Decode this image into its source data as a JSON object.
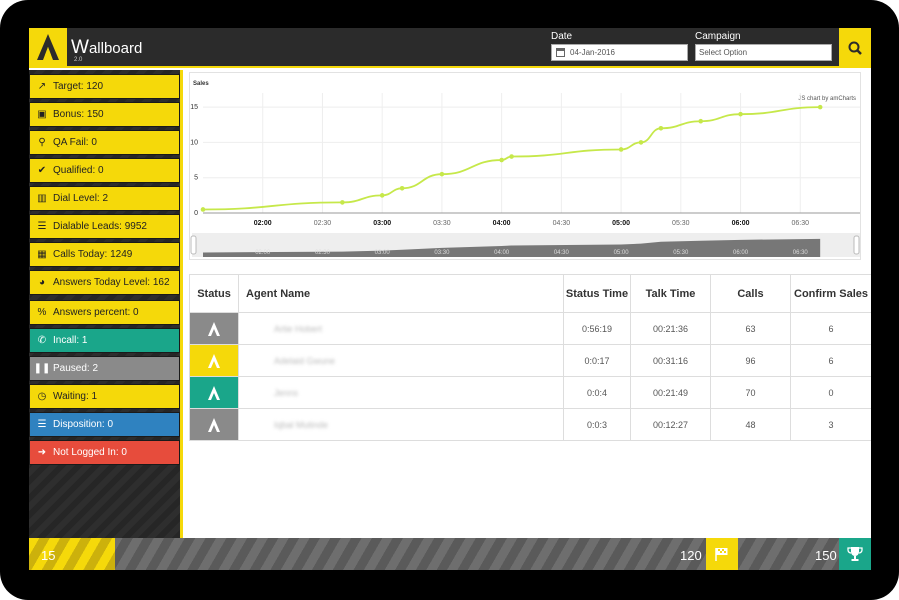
{
  "header": {
    "app_name_first": "W",
    "app_name_rest": "allboard",
    "version": "2.0",
    "date_label": "Date",
    "date_value": "04-Jan-2016",
    "campaign_label": "Campaign",
    "campaign_value": "Select Option"
  },
  "sidebar": {
    "items": [
      {
        "label": "Target: 120",
        "icon": "line-chart-icon",
        "color": "yellow"
      },
      {
        "label": "Bonus: 150",
        "icon": "gift-icon",
        "color": "yellow"
      },
      {
        "label": "QA Fail: 0",
        "icon": "search-icon",
        "color": "yellow"
      },
      {
        "label": "Qualified: 0",
        "icon": "check-icon",
        "color": "yellow"
      },
      {
        "label": "Dial Level: 2",
        "icon": "bar-chart-icon",
        "color": "yellow"
      },
      {
        "label": "Dialable Leads: 9952",
        "icon": "list-icon",
        "color": "yellow"
      },
      {
        "label": "Calls Today: 1249",
        "icon": "calendar-icon",
        "color": "yellow"
      },
      {
        "label": "Answers Today Level: 162",
        "icon": "pie-chart-icon",
        "color": "yellow"
      },
      {
        "label": "Answers percent: 0",
        "icon": "percent-icon",
        "color": "yellow"
      },
      {
        "label": "Incall: 1",
        "icon": "phone-icon",
        "color": "green"
      },
      {
        "label": "Paused: 2",
        "icon": "pause-icon",
        "color": "gray"
      },
      {
        "label": "Waiting: 1",
        "icon": "clock-icon",
        "color": "yellow"
      },
      {
        "label": "Disposition: 0",
        "icon": "list-icon",
        "color": "blue"
      },
      {
        "label": "Not Logged In: 0",
        "icon": "sign-in-icon",
        "color": "red"
      }
    ]
  },
  "chart_data": {
    "type": "line",
    "title": "Sales",
    "credit": "JS chart by amCharts",
    "x_ticks": [
      "02:00",
      "02:30",
      "03:00",
      "03:30",
      "04:00",
      "04:30",
      "05:00",
      "05:30",
      "06:00",
      "06:30"
    ],
    "bold_ticks": [
      "02:00",
      "03:00",
      "04:00",
      "05:00",
      "06:00"
    ],
    "y_ticks": [
      0,
      5,
      10,
      15
    ],
    "ylim": [
      0,
      17
    ],
    "x_minutes_range": [
      90,
      420
    ],
    "points": [
      {
        "x": "01:30",
        "y": 0.5
      },
      {
        "x": "02:40",
        "y": 1.5
      },
      {
        "x": "03:00",
        "y": 2.5
      },
      {
        "x": "03:10",
        "y": 3.5
      },
      {
        "x": "03:30",
        "y": 5.5
      },
      {
        "x": "04:00",
        "y": 7.5
      },
      {
        "x": "04:05",
        "y": 8
      },
      {
        "x": "05:00",
        "y": 9
      },
      {
        "x": "05:10",
        "y": 10
      },
      {
        "x": "05:20",
        "y": 12
      },
      {
        "x": "05:40",
        "y": 13
      },
      {
        "x": "06:00",
        "y": 14
      },
      {
        "x": "06:40",
        "y": 15
      }
    ],
    "line_color": "#c6e84a"
  },
  "table": {
    "headers": [
      "Status",
      "Agent Name",
      "Status Time",
      "Talk Time",
      "Calls",
      "Confirm Sales"
    ],
    "rows": [
      {
        "status_color": "#8a8a8a",
        "agent": "Artie Hobert",
        "status_time": "0:56:19",
        "talk_time": "00:21:36",
        "calls": "63",
        "sales": "6"
      },
      {
        "status_color": "#f5d90a",
        "agent": "Adelaid Gwune",
        "status_time": "0:0:17",
        "talk_time": "00:31:16",
        "calls": "96",
        "sales": "6"
      },
      {
        "status_color": "#1aa68a",
        "agent": "Jenns",
        "status_time": "0:0:4",
        "talk_time": "00:21:49",
        "calls": "70",
        "sales": "0"
      },
      {
        "status_color": "#8a8a8a",
        "agent": "Iqbal Mutinde",
        "status_time": "0:0:3",
        "talk_time": "00:12:27",
        "calls": "48",
        "sales": "3"
      }
    ]
  },
  "footer": {
    "left_value": "15",
    "target_value": "120",
    "bonus_value": "150"
  },
  "colors": {
    "accent": "#f5d90a",
    "green": "#1aa68a",
    "blue": "#2f82c0",
    "red": "#e74c3c",
    "gray": "#8a8a8a"
  }
}
